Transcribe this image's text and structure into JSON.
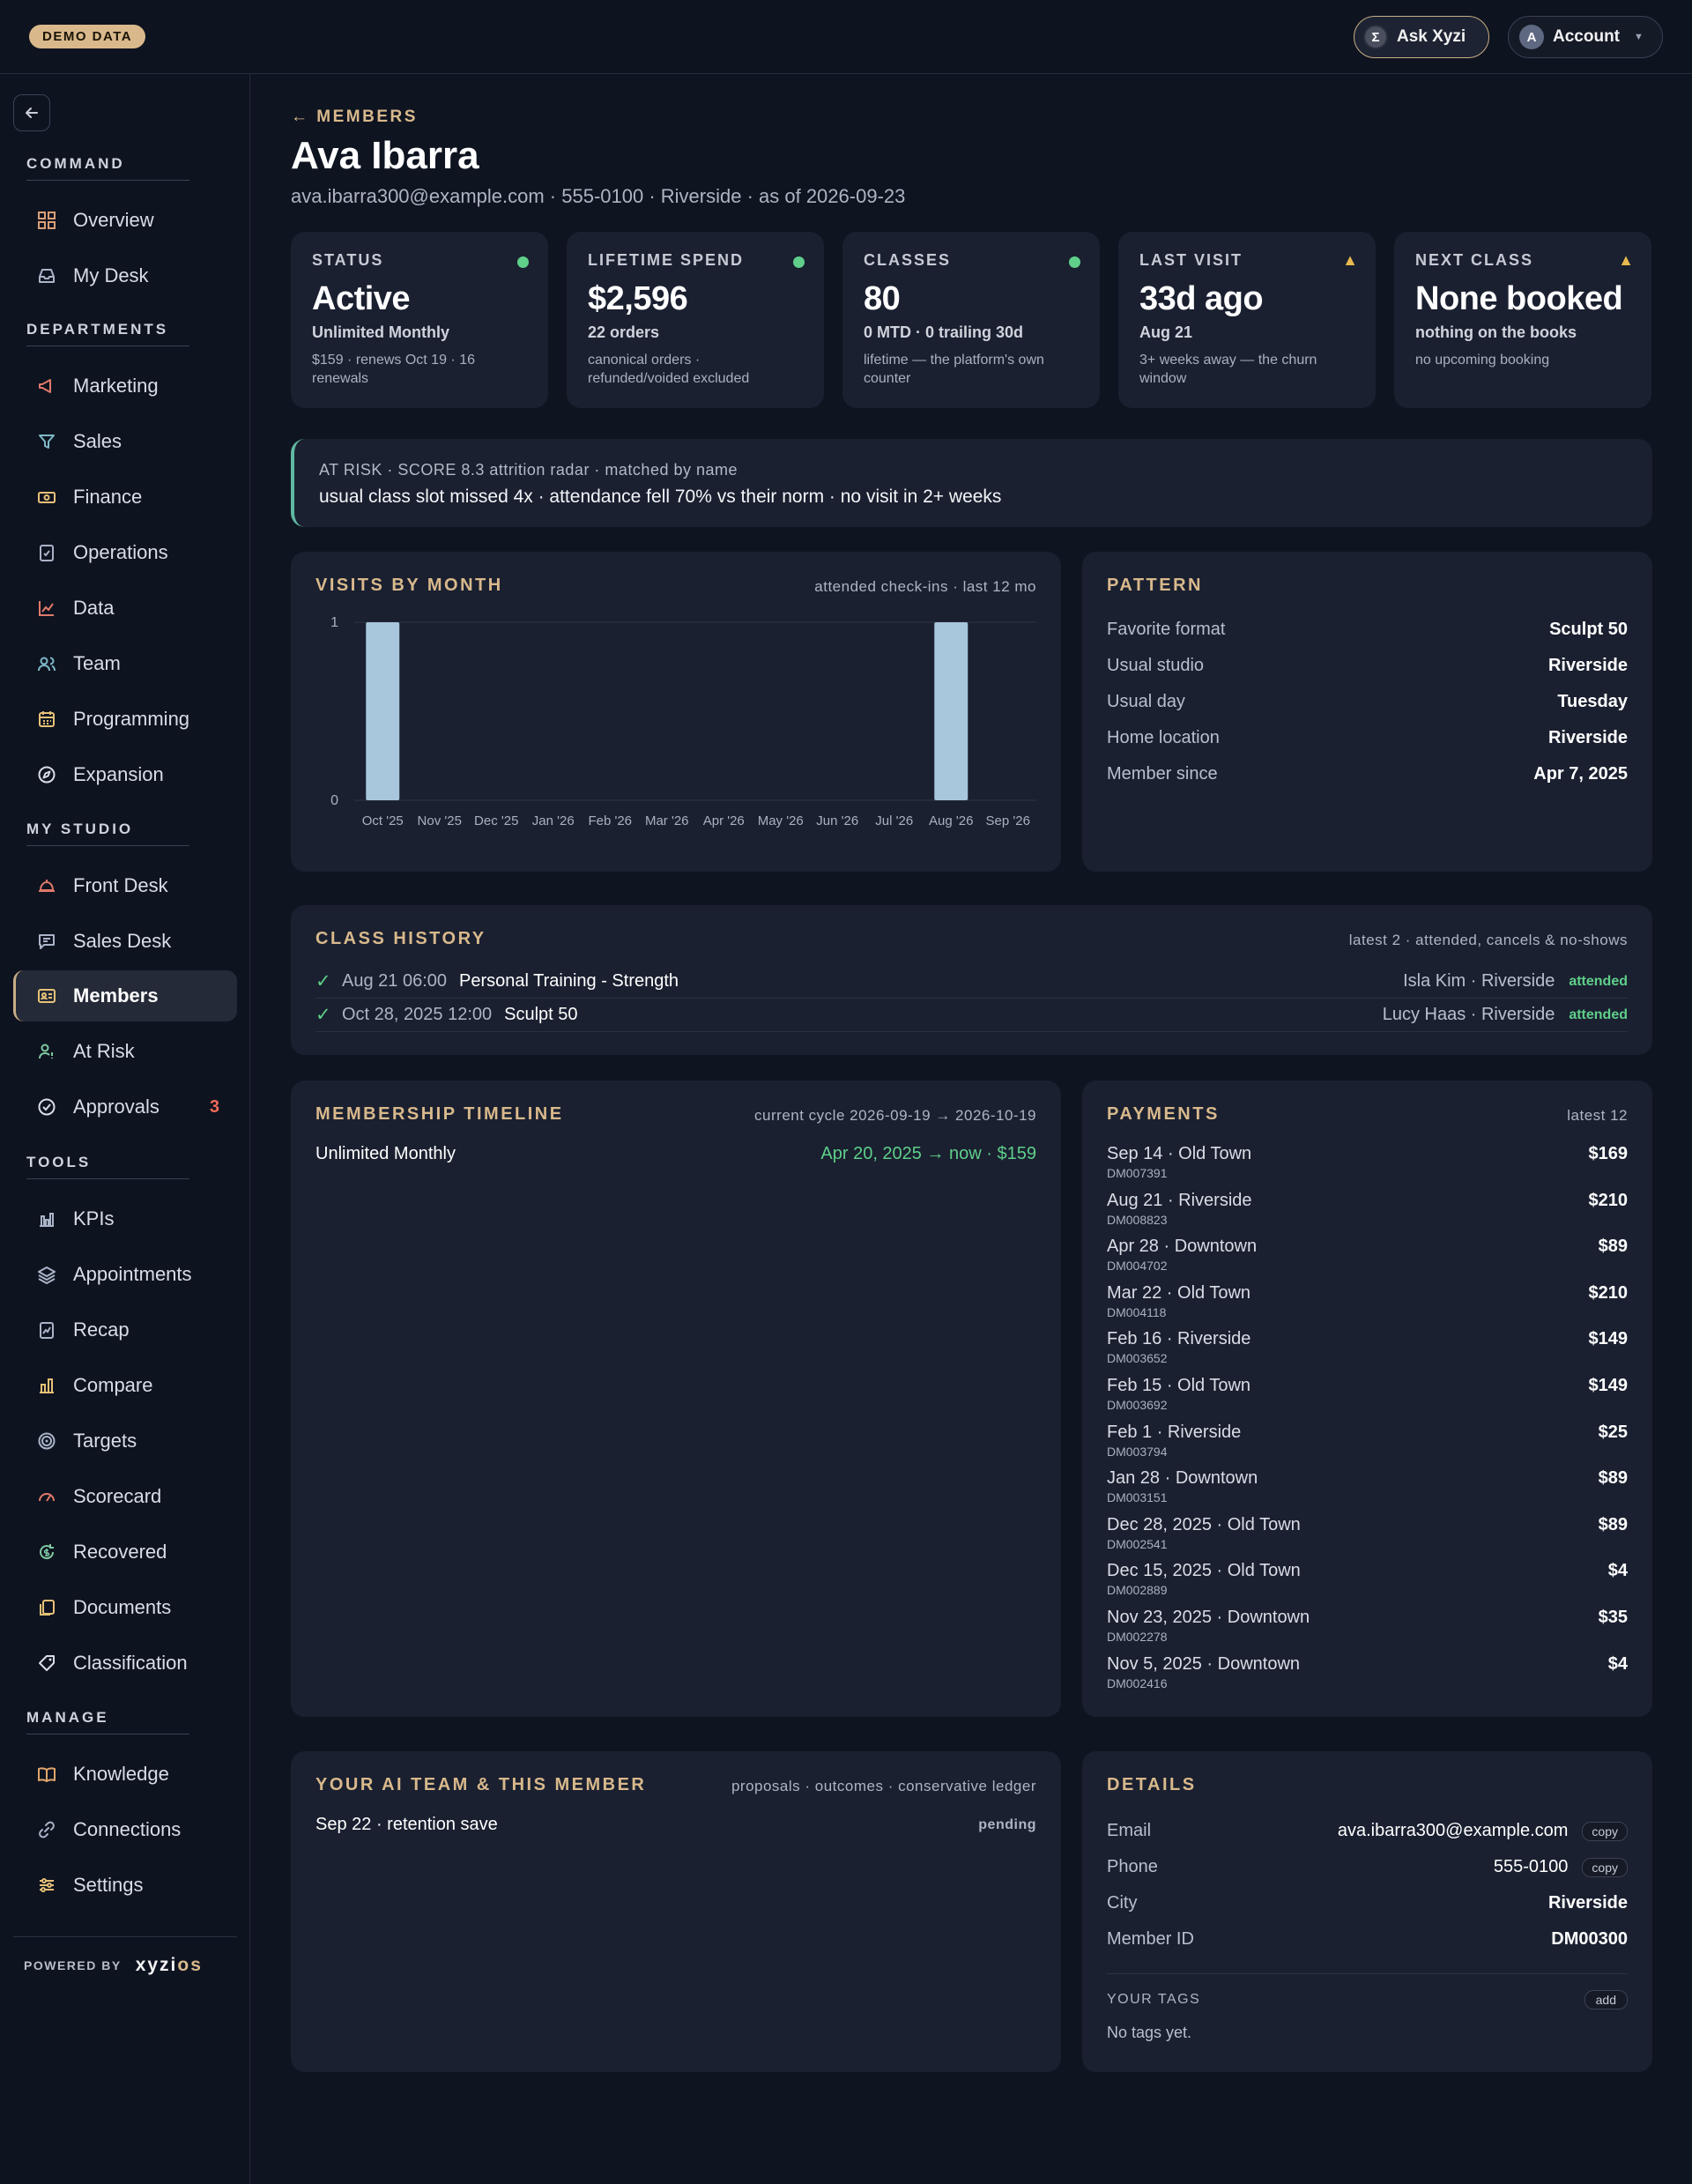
{
  "topbar": {
    "demo_badge": "DEMO DATA",
    "ask_label": "Ask Xyzi",
    "ask_icon": "Σ",
    "account_label": "Account",
    "account_avatar": "A"
  },
  "sidebar": {
    "sections": {
      "command": "COMMAND",
      "departments": "DEPARTMENTS",
      "my_studio": "MY STUDIO",
      "tools": "TOOLS",
      "manage": "MANAGE"
    },
    "items": {
      "overview": "Overview",
      "my_desk": "My Desk",
      "marketing": "Marketing",
      "sales": "Sales",
      "finance": "Finance",
      "operations": "Operations",
      "data": "Data",
      "team": "Team",
      "programming": "Programming",
      "expansion": "Expansion",
      "front_desk": "Front Desk",
      "sales_desk": "Sales Desk",
      "members": "Members",
      "at_risk": "At Risk",
      "approvals": "Approvals",
      "approvals_badge": "3",
      "kpis": "KPIs",
      "appointments": "Appointments",
      "recap": "Recap",
      "compare": "Compare",
      "targets": "Targets",
      "scorecard": "Scorecard",
      "recovered": "Recovered",
      "documents": "Documents",
      "classification": "Classification",
      "knowledge": "Knowledge",
      "connections": "Connections",
      "settings": "Settings"
    },
    "powered_by": "POWERED BY",
    "logo_a": "xyzi",
    "logo_b": "os"
  },
  "header": {
    "breadcrumb": "← MEMBERS",
    "name": "Ava Ibarra",
    "subline": "ava.ibarra300@example.com · 555-0100 · Riverside · as of 2026-09-23"
  },
  "stats": [
    {
      "label": "STATUS",
      "value": "Active",
      "sub1": "Unlimited Monthly",
      "sub2": "$159 · renews Oct 19 · 16 renewals",
      "indicator": "ok"
    },
    {
      "label": "LIFETIME SPEND",
      "value": "$2,596",
      "sub1": "22 orders",
      "sub2": "canonical orders · refunded/voided excluded",
      "indicator": "ok"
    },
    {
      "label": "CLASSES",
      "value": "80",
      "sub1": "0 MTD · 0 trailing 30d",
      "sub2": "lifetime — the platform's own counter",
      "indicator": "ok"
    },
    {
      "label": "LAST VISIT",
      "value": "33d ago",
      "sub1": "Aug 21",
      "sub2": "3+ weeks away — the churn window",
      "indicator": "warn"
    },
    {
      "label": "NEXT CLASS",
      "value": "None booked",
      "sub1": "nothing on the books",
      "sub2": "no upcoming booking",
      "indicator": "warn"
    }
  ],
  "risk": {
    "line1": "AT RISK · SCORE 8.3 attrition radar · matched by name",
    "line2": "usual class slot missed 4x · attendance fell 70% vs their norm · no visit in 2+ weeks"
  },
  "visits": {
    "title": "VISITS BY MONTH",
    "meta": "attended check-ins · last 12 mo"
  },
  "chart_data": {
    "type": "bar",
    "categories": [
      "Oct '25",
      "Nov '25",
      "Dec '25",
      "Jan '26",
      "Feb '26",
      "Mar '26",
      "Apr '26",
      "May '26",
      "Jun '26",
      "Jul '26",
      "Aug '26",
      "Sep '26"
    ],
    "values": [
      1,
      0,
      0,
      0,
      0,
      0,
      0,
      0,
      0,
      0,
      1,
      0
    ],
    "title": "VISITS BY MONTH",
    "ylim": [
      0,
      1
    ],
    "yticks": [
      "0",
      "1"
    ],
    "bar_color": "#a8c6dc",
    "grid": true
  },
  "pattern": {
    "title": "PATTERN",
    "rows": [
      {
        "k": "Favorite format",
        "v": "Sculpt 50"
      },
      {
        "k": "Usual studio",
        "v": "Riverside"
      },
      {
        "k": "Usual day",
        "v": "Tuesday"
      },
      {
        "k": "Home location",
        "v": "Riverside"
      },
      {
        "k": "Member since",
        "v": "Apr 7, 2025"
      }
    ]
  },
  "history": {
    "title": "CLASS HISTORY",
    "meta": "latest 2 · attended, cancels & no-shows",
    "rows": [
      {
        "check": "✓",
        "date": "Aug 21 06:00",
        "class": "Personal Training - Strength",
        "who": "Isla Kim · Riverside",
        "status": "attended"
      },
      {
        "check": "✓",
        "date": "Oct 28, 2025 12:00",
        "class": "Sculpt 50",
        "who": "Lucy Haas · Riverside",
        "status": "attended"
      }
    ]
  },
  "timeline": {
    "title": "MEMBERSHIP TIMELINE",
    "meta": "current cycle 2026-09-19 → 2026-10-19",
    "plan": "Unlimited Monthly",
    "range": "Apr 20, 2025 → now · $159"
  },
  "payments": {
    "title": "PAYMENTS",
    "meta": "latest 12",
    "rows": [
      {
        "where": "Sep 14 · Old Town",
        "id": "DM007391",
        "amount": "$169"
      },
      {
        "where": "Aug 21 · Riverside",
        "id": "DM008823",
        "amount": "$210"
      },
      {
        "where": "Apr 28 · Downtown",
        "id": "DM004702",
        "amount": "$89"
      },
      {
        "where": "Mar 22 · Old Town",
        "id": "DM004118",
        "amount": "$210"
      },
      {
        "where": "Feb 16 · Riverside",
        "id": "DM003652",
        "amount": "$149"
      },
      {
        "where": "Feb 15 · Old Town",
        "id": "DM003692",
        "amount": "$149"
      },
      {
        "where": "Feb 1 · Riverside",
        "id": "DM003794",
        "amount": "$25"
      },
      {
        "where": "Jan 28 · Downtown",
        "id": "DM003151",
        "amount": "$89"
      },
      {
        "where": "Dec 28, 2025 · Old Town",
        "id": "DM002541",
        "amount": "$89"
      },
      {
        "where": "Dec 15, 2025 · Old Town",
        "id": "DM002889",
        "amount": "$4"
      },
      {
        "where": "Nov 23, 2025 · Downtown",
        "id": "DM002278",
        "amount": "$35"
      },
      {
        "where": "Nov 5, 2025 · Downtown",
        "id": "DM002416",
        "amount": "$4"
      }
    ]
  },
  "ai": {
    "title": "YOUR AI TEAM & THIS MEMBER",
    "meta": "proposals · outcomes · conservative ledger",
    "item": "Sep 22 · retention save",
    "state": "pending"
  },
  "details": {
    "title": "DETAILS",
    "rows": [
      {
        "k": "Email",
        "v": "ava.ibarra300@example.com",
        "copy": "copy"
      },
      {
        "k": "Phone",
        "v": "555-0100",
        "copy": "copy"
      },
      {
        "k": "City",
        "v": "Riverside"
      },
      {
        "k": "Member ID",
        "v": "DM00300"
      }
    ],
    "tags_label": "YOUR TAGS",
    "add_label": "add",
    "no_tags": "No tags yet."
  }
}
